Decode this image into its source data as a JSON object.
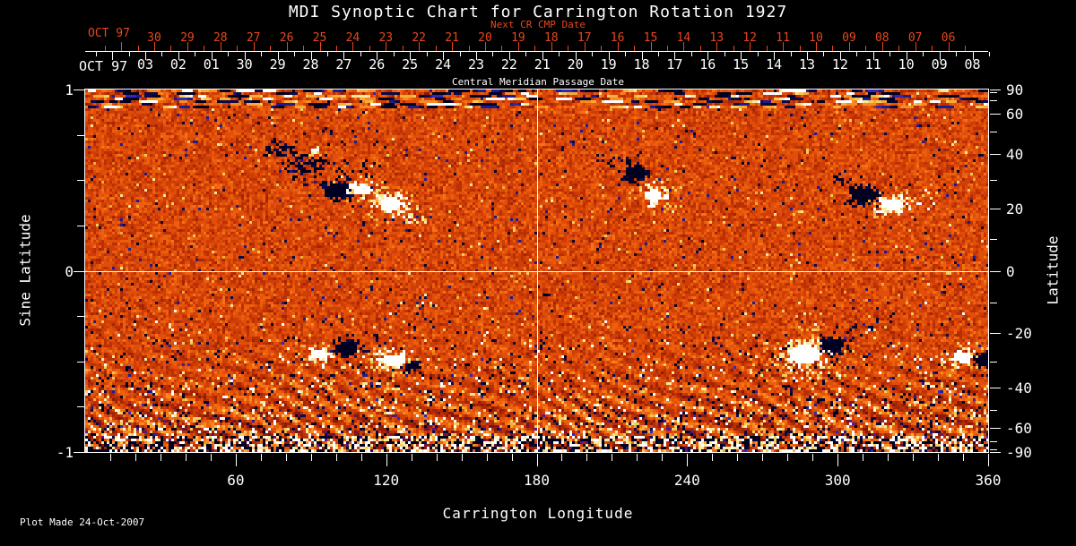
{
  "title": "MDI Synoptic Chart for Carrington Rotation 1927",
  "top_axis": {
    "red": {
      "label": "Next CR CMP Date",
      "month": "OCT 97",
      "color": "#E8481C",
      "days": [
        "30",
        "29",
        "28",
        "27",
        "26",
        "25",
        "24",
        "23",
        "22",
        "21",
        "20",
        "19",
        "18",
        "17",
        "16",
        "15",
        "14",
        "13",
        "12",
        "11",
        "10",
        "09",
        "08",
        "07",
        "06"
      ]
    },
    "white": {
      "label": "Central Meridian Passage Date",
      "month": "OCT 97",
      "color": "#FFFFFF",
      "days": [
        "03",
        "02",
        "01",
        "30",
        "29",
        "28",
        "27",
        "26",
        "25",
        "24",
        "23",
        "22",
        "21",
        "20",
        "19",
        "18",
        "17",
        "16",
        "15",
        "14",
        "13",
        "12",
        "11",
        "10",
        "09",
        "08"
      ]
    }
  },
  "axes": {
    "left": {
      "title": "Sine Latitude",
      "major_ticks": [
        {
          "v": 1,
          "label": "1"
        },
        {
          "v": 0,
          "label": "0"
        },
        {
          "v": -1,
          "label": "-1"
        }
      ],
      "minor_ticks": [
        0.75,
        0.5,
        0.25,
        -0.25,
        -0.5,
        -0.75
      ]
    },
    "right": {
      "title": "Latitude",
      "major_ticks": [
        {
          "lat": 90,
          "label": "90"
        },
        {
          "lat": 60,
          "label": "60"
        },
        {
          "lat": 40,
          "label": "40"
        },
        {
          "lat": 20,
          "label": "20"
        },
        {
          "lat": 0,
          "label": "0"
        },
        {
          "lat": -20,
          "label": "-20"
        },
        {
          "lat": -40,
          "label": "-40"
        },
        {
          "lat": -60,
          "label": "-60"
        },
        {
          "lat": -90,
          "label": "-90"
        }
      ],
      "minor_ticks": [
        80,
        70,
        50,
        30,
        10,
        -10,
        -30,
        -50,
        -70,
        -80
      ]
    },
    "bottom": {
      "title": "Carrington Longitude",
      "range": [
        0,
        360
      ],
      "minor_step": 10,
      "major_ticks": [
        {
          "deg": 60,
          "label": "60"
        },
        {
          "deg": 120,
          "label": "120"
        },
        {
          "deg": 180,
          "label": "180"
        },
        {
          "deg": 240,
          "label": "240"
        },
        {
          "deg": 300,
          "label": "300"
        },
        {
          "deg": 360,
          "label": "360"
        }
      ]
    }
  },
  "footer": {
    "plot_made": "Plot Made 24-Oct-2007"
  },
  "chart_data": {
    "type": "heatmap",
    "title": "MDI Synoptic Chart for Carrington Rotation 1927",
    "xlabel": "Carrington Longitude",
    "ylabel": "Sine Latitude",
    "y2label": "Latitude",
    "xlim": [
      0,
      360
    ],
    "ylim": [
      -1,
      1
    ],
    "x_major_ticks": [
      60,
      120,
      180,
      240,
      300,
      360
    ],
    "right_latitude_ticks": [
      90,
      60,
      40,
      20,
      0,
      -20,
      -40,
      -60,
      -90
    ],
    "grid": {
      "meridian_longitude": 180,
      "equator_latitude": 0,
      "color": "#FFFFFF"
    },
    "texture": {
      "seed": 1927,
      "cell": 3,
      "palette": [
        {
          "t": -1.0,
          "c": "#000020"
        },
        {
          "t": -0.9,
          "c": "#0A0A48"
        },
        {
          "t": -0.8,
          "c": "#1C1C90"
        },
        {
          "t": -0.7,
          "c": "#3228B8"
        },
        {
          "t": -0.62,
          "c": "#55188A"
        },
        {
          "t": -0.52,
          "c": "#6E1430"
        },
        {
          "t": -0.4,
          "c": "#8A1A06"
        },
        {
          "t": -0.24,
          "c": "#A42504"
        },
        {
          "t": -0.1,
          "c": "#BA3004"
        },
        {
          "t": 0.04,
          "c": "#CE3E06"
        },
        {
          "t": 0.18,
          "c": "#E04E09"
        },
        {
          "t": 0.32,
          "c": "#EC5F0D"
        },
        {
          "t": 0.46,
          "c": "#F57315"
        },
        {
          "t": 0.58,
          "c": "#F98B22"
        },
        {
          "t": 0.7,
          "c": "#F7AB3A"
        },
        {
          "t": 0.8,
          "c": "#F2CC5C"
        },
        {
          "t": 0.87,
          "c": "#F9E9A0"
        },
        {
          "t": 0.93,
          "c": "#FFFFFF"
        }
      ]
    },
    "active_regions": [
      {
        "lon": 77,
        "lat": 43,
        "rx": 0.025,
        "ry": 0.03,
        "polarity": "negative",
        "density": 0.4
      },
      {
        "lon": 88,
        "lat": 36,
        "rx": 0.03,
        "ry": 0.042,
        "polarity": "negative",
        "density": 0.55
      },
      {
        "lon": 100,
        "lat": 27,
        "rx": 0.022,
        "ry": 0.04,
        "polarity": "negative",
        "density": 0.7
      },
      {
        "lon": 108,
        "lat": 33,
        "rx": 0.045,
        "ry": 0.055,
        "polarity": "negative",
        "density": 0.12
      },
      {
        "lon": 91,
        "lat": 42,
        "rx": 0.008,
        "ry": 0.012,
        "polarity": "positive",
        "density": 0.9
      },
      {
        "lon": 110,
        "lat": 27,
        "rx": 0.018,
        "ry": 0.03,
        "polarity": "positive",
        "density": 0.75
      },
      {
        "lon": 121,
        "lat": 22,
        "rx": 0.023,
        "ry": 0.036,
        "polarity": "positive",
        "density": 0.8
      },
      {
        "lon": 131,
        "lat": 17,
        "rx": 0.015,
        "ry": 0.02,
        "polarity": "positive",
        "density": 0.45
      },
      {
        "lon": 212,
        "lat": 38,
        "rx": 0.03,
        "ry": 0.026,
        "polarity": "negative",
        "density": 0.2
      },
      {
        "lon": 219,
        "lat": 33,
        "rx": 0.022,
        "ry": 0.033,
        "polarity": "negative",
        "density": 0.7
      },
      {
        "lon": 226,
        "lat": 25,
        "rx": 0.018,
        "ry": 0.038,
        "polarity": "positive",
        "density": 0.8
      },
      {
        "lon": 302,
        "lat": 30,
        "rx": 0.025,
        "ry": 0.025,
        "polarity": "negative",
        "density": 0.18
      },
      {
        "lon": 310,
        "lat": 25,
        "rx": 0.028,
        "ry": 0.038,
        "polarity": "negative",
        "density": 0.7
      },
      {
        "lon": 321,
        "lat": 22,
        "rx": 0.023,
        "ry": 0.033,
        "polarity": "positive",
        "density": 0.85
      },
      {
        "lon": 335,
        "lat": 24,
        "rx": 0.02,
        "ry": 0.04,
        "polarity": "positive",
        "density": 0.18
      },
      {
        "lon": 93,
        "lat": -27,
        "rx": 0.017,
        "ry": 0.026,
        "polarity": "positive",
        "density": 0.8
      },
      {
        "lon": 104,
        "lat": -25,
        "rx": 0.02,
        "ry": 0.042,
        "polarity": "negative",
        "density": 0.65
      },
      {
        "lon": 122,
        "lat": -29,
        "rx": 0.024,
        "ry": 0.032,
        "polarity": "positive",
        "density": 0.8
      },
      {
        "lon": 130,
        "lat": -31,
        "rx": 0.013,
        "ry": 0.018,
        "polarity": "negative",
        "density": 0.7
      },
      {
        "lon": 286,
        "lat": -27,
        "rx": 0.032,
        "ry": 0.052,
        "polarity": "positive",
        "density": 0.8
      },
      {
        "lon": 297,
        "lat": -24,
        "rx": 0.024,
        "ry": 0.03,
        "polarity": "negative",
        "density": 0.8
      },
      {
        "lon": 306,
        "lat": -19,
        "rx": 0.025,
        "ry": 0.02,
        "polarity": "negative",
        "density": 0.2
      },
      {
        "lon": 349,
        "lat": -28,
        "rx": 0.02,
        "ry": 0.03,
        "polarity": "positive",
        "density": 0.8
      },
      {
        "lon": 357,
        "lat": -29,
        "rx": 0.015,
        "ry": 0.03,
        "polarity": "negative",
        "density": 0.8
      }
    ]
  }
}
